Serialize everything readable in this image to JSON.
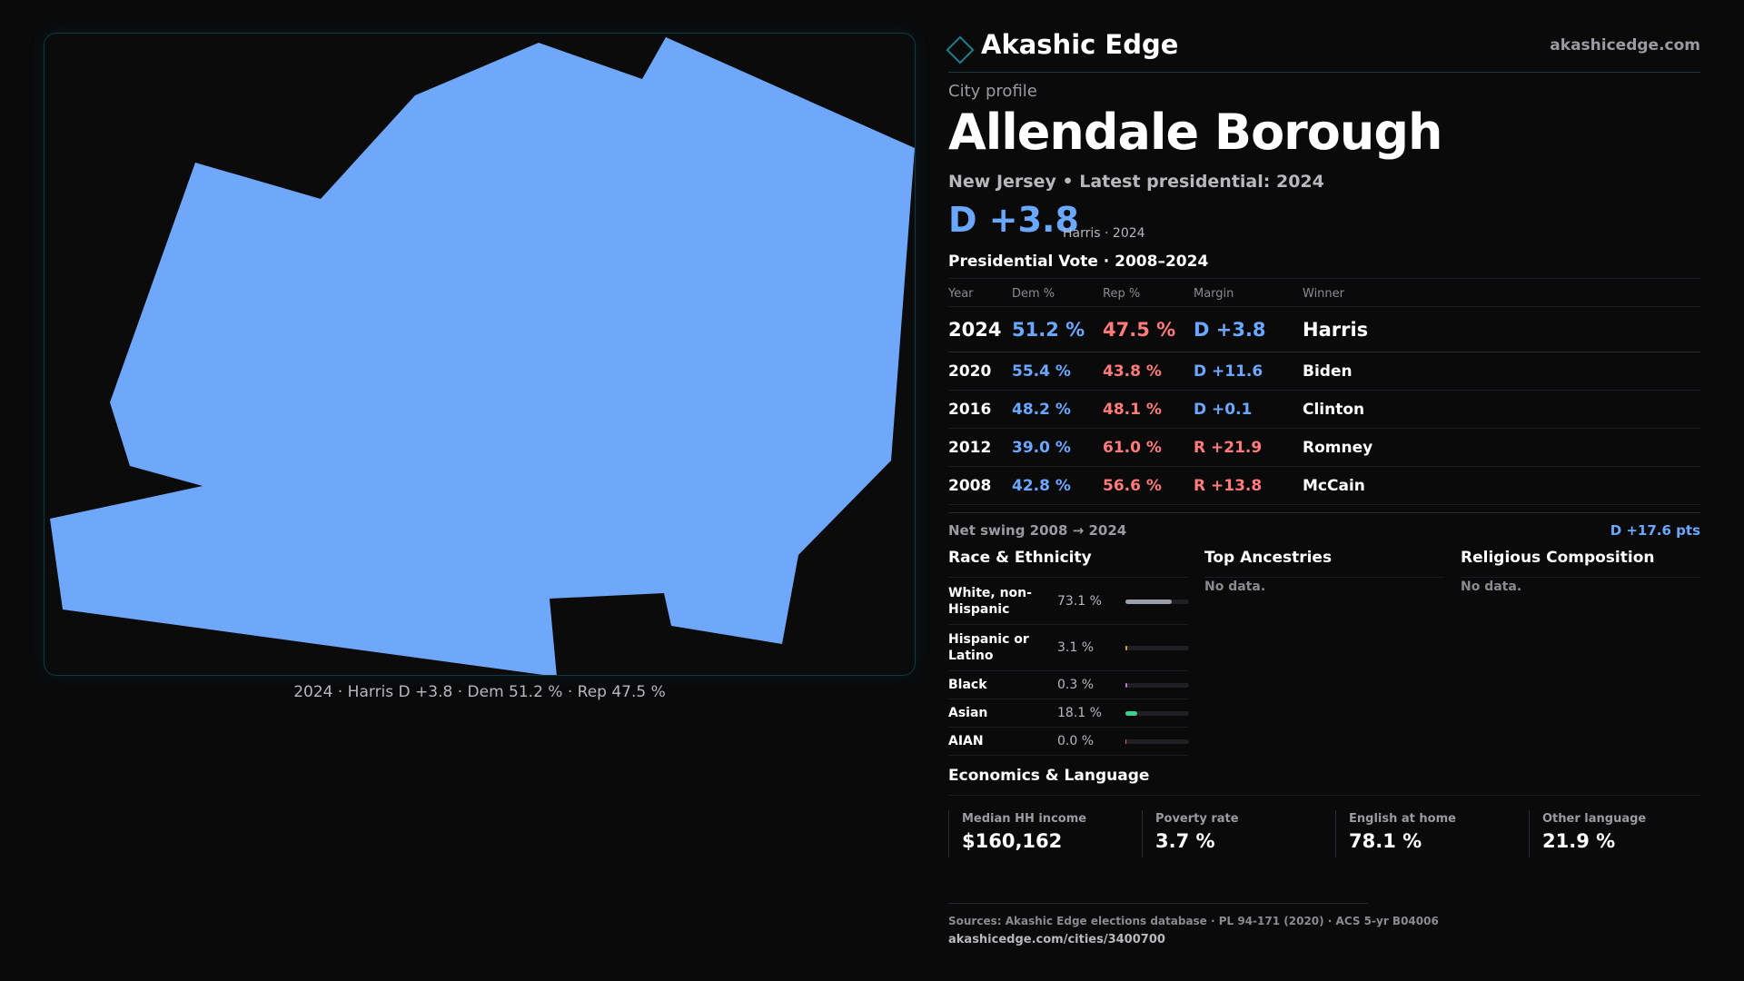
{
  "colors": {
    "background": "#0a0a0b",
    "dem": "#6aa8ff",
    "rep": "#ff7a7a",
    "map_fill": "#6fa8fb",
    "brand_accent": "#1c7f8c"
  },
  "map": {
    "caption": "2024 · Harris D +3.8 · Dem 51.2 % · Rep 47.5 %"
  },
  "brand": {
    "logo_icon": "diamond-outline-icon",
    "name": "Akashic Edge",
    "url": "akashicedge.com"
  },
  "profile": {
    "kicker": "City profile",
    "title": "Allendale Borough",
    "subtitle": "New Jersey • Latest presidential: 2024",
    "headline_margin": "D +3.8",
    "headline_note": "Harris · 2024"
  },
  "vote": {
    "section_title": "Presidential Vote · 2008–2024",
    "headers": [
      "Year",
      "Dem %",
      "Rep %",
      "Margin",
      "Winner"
    ],
    "rows": [
      {
        "year": "2024",
        "dem": "51.2 %",
        "rep": "47.5 %",
        "margin": "D +3.8",
        "margin_party": "dem",
        "winner": "Harris"
      },
      {
        "year": "2020",
        "dem": "55.4 %",
        "rep": "43.8 %",
        "margin": "D +11.6",
        "margin_party": "dem",
        "winner": "Biden"
      },
      {
        "year": "2016",
        "dem": "48.2 %",
        "rep": "48.1 %",
        "margin": "D +0.1",
        "margin_party": "dem",
        "winner": "Clinton"
      },
      {
        "year": "2012",
        "dem": "39.0 %",
        "rep": "61.0 %",
        "margin": "R +21.9",
        "margin_party": "rep",
        "winner": "Romney"
      },
      {
        "year": "2008",
        "dem": "42.8 %",
        "rep": "56.6 %",
        "margin": "R +13.8",
        "margin_party": "rep",
        "winner": "McCain"
      }
    ],
    "swing_label": "Net swing 2008 → 2024",
    "swing_value": "D +17.6 pts"
  },
  "race": {
    "section_title": "Race & Ethnicity",
    "rows": [
      {
        "label_line1": "White, non-",
        "label_line2": "Hispanic",
        "value": "73.1 %",
        "share": 0.731,
        "color": "#9aa0a8"
      },
      {
        "label_line1": "Hispanic or",
        "label_line2": "Latino",
        "value": "3.1 %",
        "share": 0.031,
        "color": "#e0a030"
      },
      {
        "label_line1": "Black",
        "label_line2": "",
        "value": "0.3 %",
        "share": 0.003,
        "color": "#b07ad8"
      },
      {
        "label_line1": "Asian",
        "label_line2": "",
        "value": "18.1 %",
        "share": 0.181,
        "color": "#3ccf8e"
      },
      {
        "label_line1": "AIAN",
        "label_line2": "",
        "value": "0.0 %",
        "share": 0.0,
        "color": "#d86a6a"
      }
    ]
  },
  "ancestries": {
    "section_title": "Top Ancestries",
    "empty_text": "No data."
  },
  "religion": {
    "section_title": "Religious Composition",
    "empty_text": "No data."
  },
  "economics": {
    "section_title": "Economics & Language",
    "cells": [
      {
        "label": "Median HH income",
        "value": "$160,162"
      },
      {
        "label": "Poverty rate",
        "value": "3.7 %"
      },
      {
        "label": "English at home",
        "value": "78.1 %"
      },
      {
        "label": "Other language",
        "value": "21.9 %"
      }
    ]
  },
  "sources": {
    "line": "Sources: Akashic Edge elections database · PL 94-171 (2020) · ACS 5-yr B04006",
    "url": "akashicedge.com/cities/3400700"
  }
}
